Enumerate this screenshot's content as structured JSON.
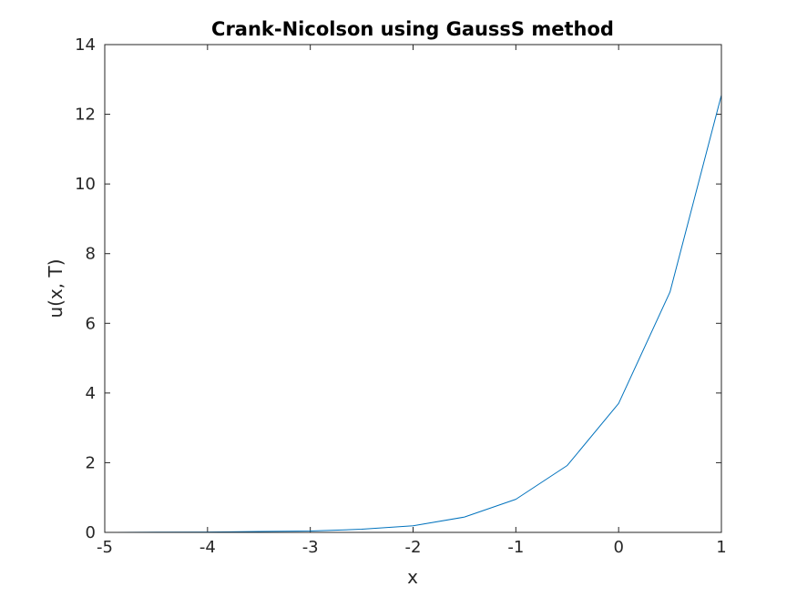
{
  "chart_data": {
    "type": "line",
    "title": "Crank-Nicolson using GaussS method",
    "xlabel": "x",
    "ylabel": "u(x, T)",
    "xlim": [
      -5,
      1
    ],
    "ylim": [
      0,
      14
    ],
    "xticks": [
      -5,
      -4,
      -3,
      -2,
      -1,
      0,
      1
    ],
    "xtick_labels": [
      "-5",
      "-4",
      "-3",
      "-2",
      "-1",
      "0",
      "1"
    ],
    "yticks": [
      0,
      2,
      4,
      6,
      8,
      10,
      12,
      14
    ],
    "ytick_labels": [
      "0",
      "2",
      "4",
      "6",
      "8",
      "10",
      "12",
      "14"
    ],
    "grid": false,
    "series": [
      {
        "name": "u(x, T)",
        "color": "#0072BD",
        "x": [
          -5,
          -4.5,
          -4,
          -3.5,
          -3,
          -2.5,
          -2,
          -1.5,
          -1,
          -0.5,
          0,
          0.5,
          1
        ],
        "y": [
          0.0,
          0.005,
          0.01,
          0.025,
          0.04,
          0.09,
          0.19,
          0.44,
          0.95,
          1.92,
          3.7,
          6.9,
          12.55
        ]
      }
    ]
  },
  "colors": {
    "axes": "#262626",
    "background": "#ffffff"
  }
}
